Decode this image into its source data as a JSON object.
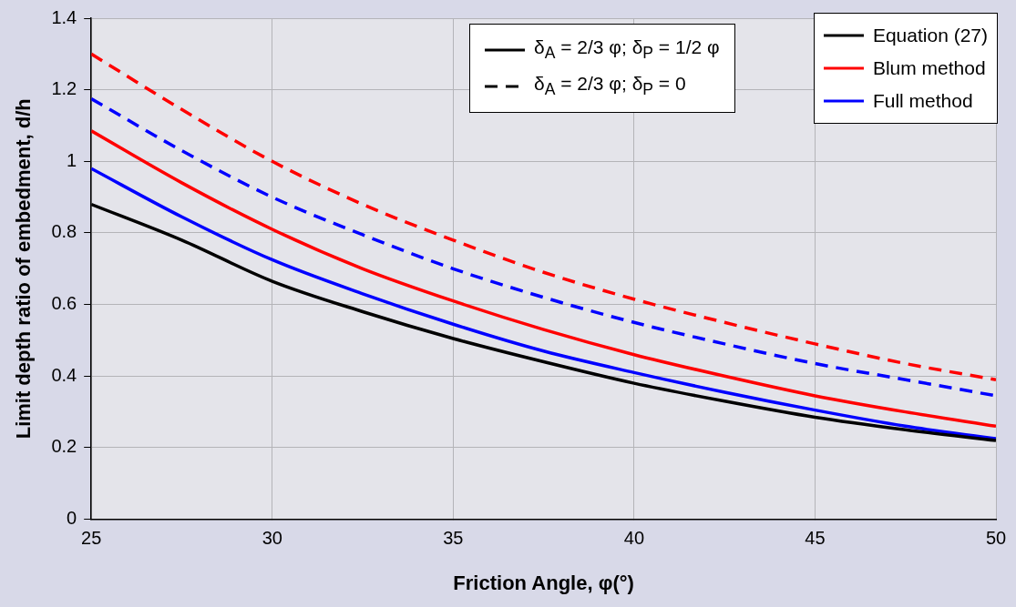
{
  "chart_data": {
    "type": "line",
    "xlabel": "Friction Angle, φ(°)",
    "ylabel": "Limit depth ratio of embedment, d/h",
    "x": [
      25,
      27.5,
      30,
      32.5,
      35,
      37.5,
      40,
      42.5,
      45,
      47.5,
      50
    ],
    "xlim": [
      25,
      50
    ],
    "xticks": [
      25,
      30,
      35,
      40,
      45,
      50
    ],
    "ylim": [
      0,
      1.4
    ],
    "yticks": [
      0,
      0.2,
      0.4,
      0.6,
      0.8,
      1,
      1.2,
      1.4
    ],
    "grid": true,
    "legend": "top right",
    "marker": "none",
    "annotations": [
      "δ$_{A}$ = 2/3 φ; δ$_{P}$ = 1/2 φ",
      "δ$_{A}$ = 2/3 φ; δ$_{P}$ = 0"
    ],
    "series": [
      {
        "name": "Equation (27)",
        "color": "#000000",
        "line_style": "solid",
        "values": [
          0.88,
          0.78,
          0.665,
          0.58,
          0.505,
          0.44,
          0.38,
          0.33,
          0.285,
          0.25,
          0.22
        ]
      },
      {
        "name": "Blum method",
        "color": "#ff0000",
        "line_style": "solid",
        "values": [
          1.085,
          0.94,
          0.81,
          0.7,
          0.61,
          0.53,
          0.46,
          0.4,
          0.345,
          0.3,
          0.26
        ]
      },
      {
        "name": "Full method",
        "color": "#0000ff",
        "line_style": "solid",
        "values": [
          0.98,
          0.845,
          0.725,
          0.63,
          0.545,
          0.47,
          0.41,
          0.355,
          0.305,
          0.26,
          0.225
        ]
      },
      {
        "color": "#ff0000",
        "line_style": "dashed",
        "values": [
          1.3,
          1.145,
          1.0,
          0.88,
          0.78,
          0.69,
          0.615,
          0.55,
          0.49,
          0.435,
          0.39
        ]
      },
      {
        "color": "#0000ff",
        "line_style": "dashed",
        "values": [
          1.175,
          1.03,
          0.9,
          0.795,
          0.7,
          0.62,
          0.55,
          0.49,
          0.435,
          0.39,
          0.345
        ]
      }
    ]
  }
}
